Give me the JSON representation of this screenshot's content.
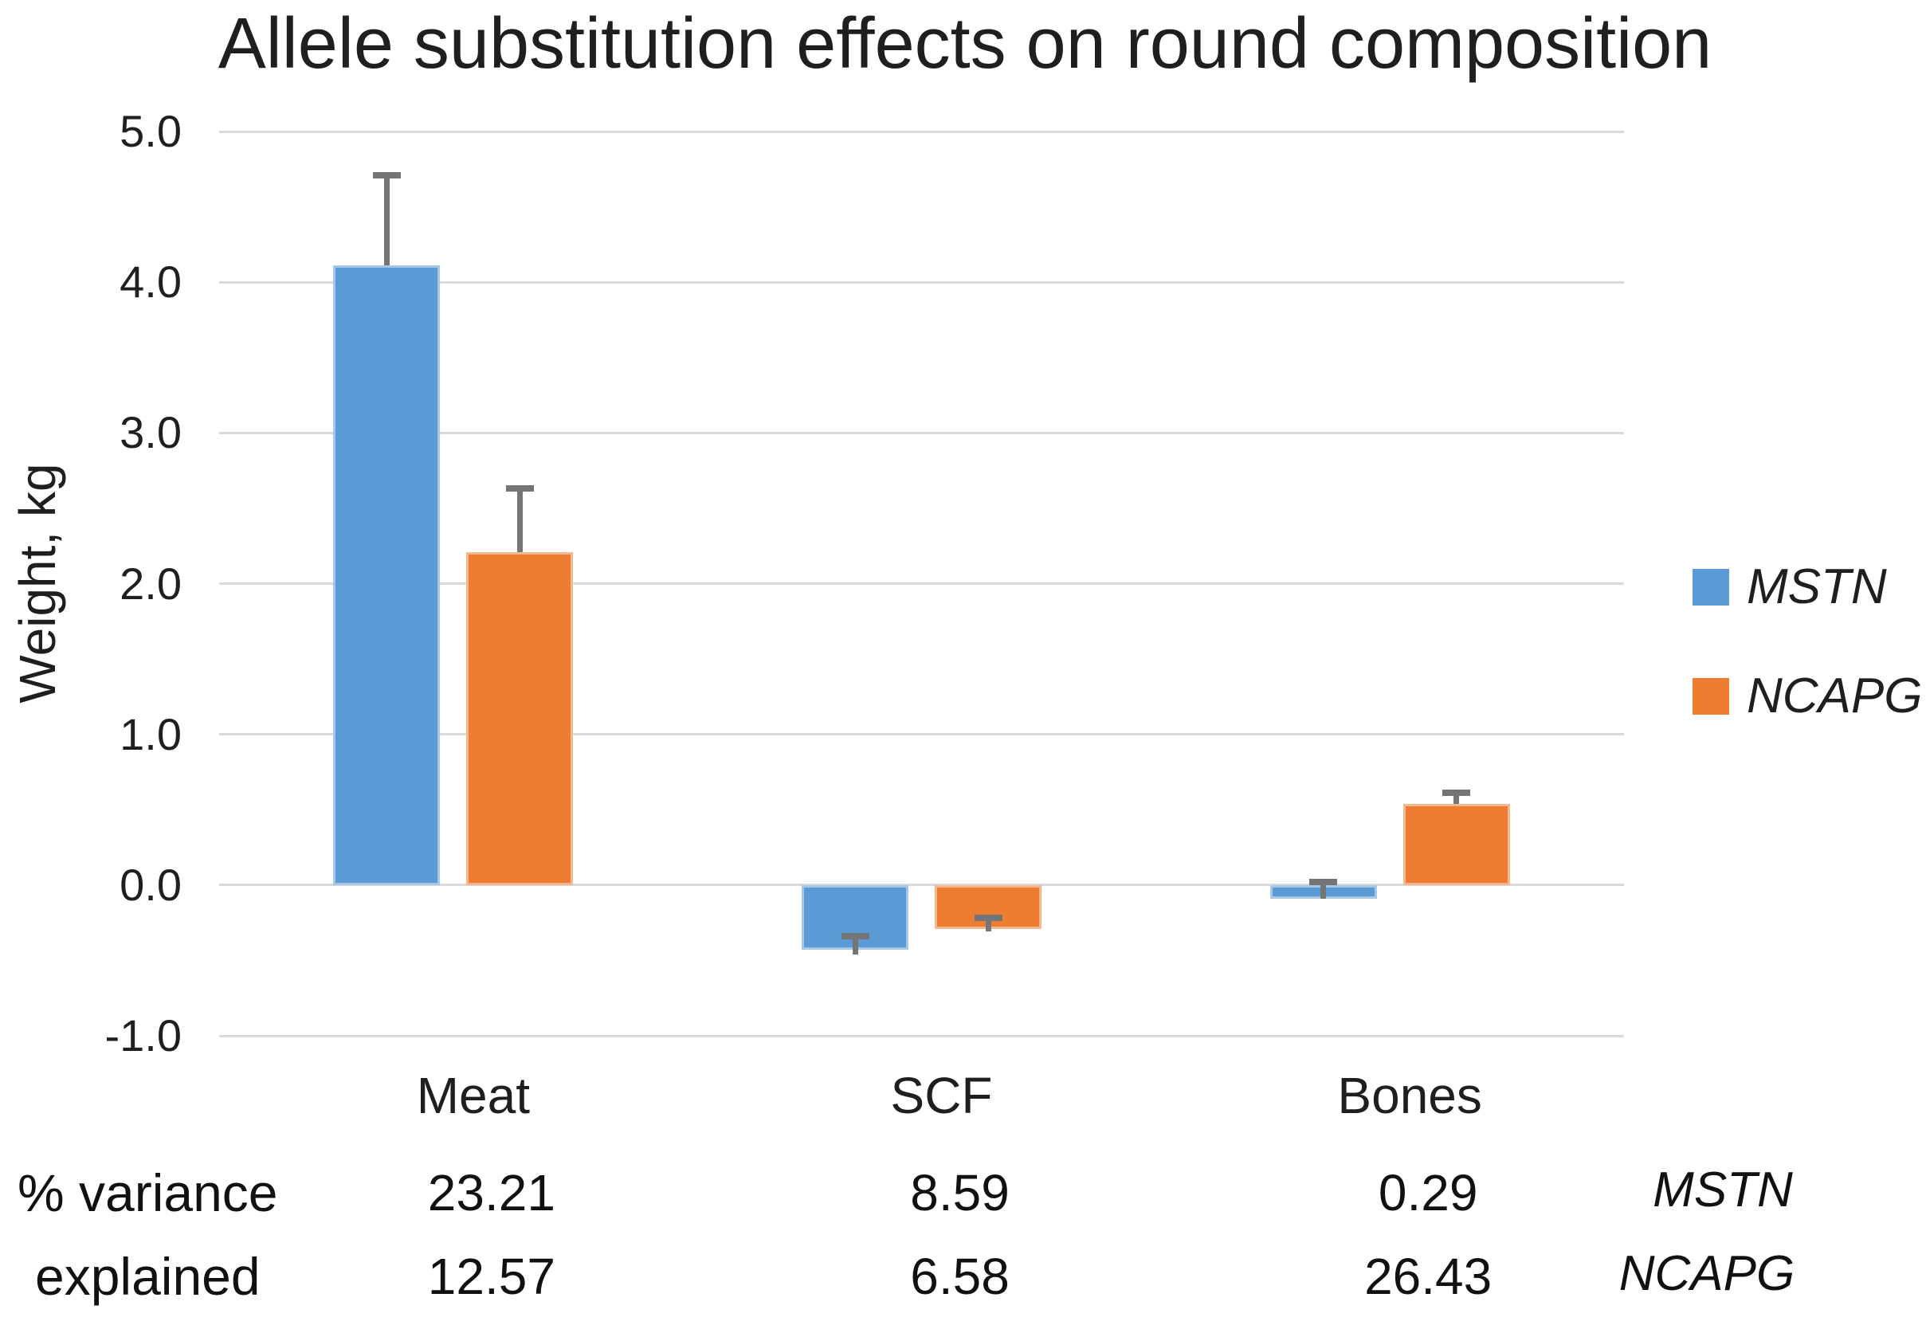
{
  "title": "Allele substitution effects on round composition",
  "chart_data": {
    "type": "bar",
    "title": "Allele substitution effects on round composition",
    "xlabel": "",
    "ylabel": "Weight, kg",
    "categories": [
      "Meat",
      "SCF",
      "Bones"
    ],
    "series": [
      {
        "name": "MSTN",
        "color": "#5B9BD5",
        "values": [
          4.11,
          -0.43,
          -0.09
        ],
        "error_whisker_top": [
          4.71,
          -0.34,
          0.02
        ],
        "error_whisker_bottom": [
          4.11,
          -0.46,
          -0.09
        ]
      },
      {
        "name": "NCAPG",
        "color": "#ED7D31",
        "values": [
          2.21,
          -0.29,
          0.54
        ],
        "error_whisker_top": [
          2.63,
          -0.22,
          0.61
        ],
        "error_whisker_bottom": [
          2.21,
          -0.31,
          0.54
        ]
      }
    ],
    "ylim": [
      -1.0,
      5.0
    ],
    "yticks": [
      {
        "label": "5.0",
        "value": 5
      },
      {
        "label": "4.0",
        "value": 4
      },
      {
        "label": "3.0",
        "value": 3
      },
      {
        "label": "2.0",
        "value": 2
      },
      {
        "label": "1.0",
        "value": 1
      },
      {
        "label": "0.0",
        "value": 0
      },
      {
        "label": "-1.0",
        "value": -1
      }
    ],
    "grid": true,
    "legend_position": "right"
  },
  "variance_table": {
    "row_labels": [
      "% variance",
      "explained"
    ],
    "rows": [
      {
        "series": "MSTN",
        "values": [
          "23.21",
          "8.59",
          "0.29"
        ]
      },
      {
        "series": "NCAPG",
        "values": [
          "12.57",
          "6.58",
          "26.43"
        ]
      }
    ]
  },
  "colors": {
    "bar_blue": "#5B9BD5",
    "bar_orange": "#ED7D31",
    "gridline": "#D9D9D9",
    "error_bar": "#757575",
    "text": "#1F1F1F"
  }
}
